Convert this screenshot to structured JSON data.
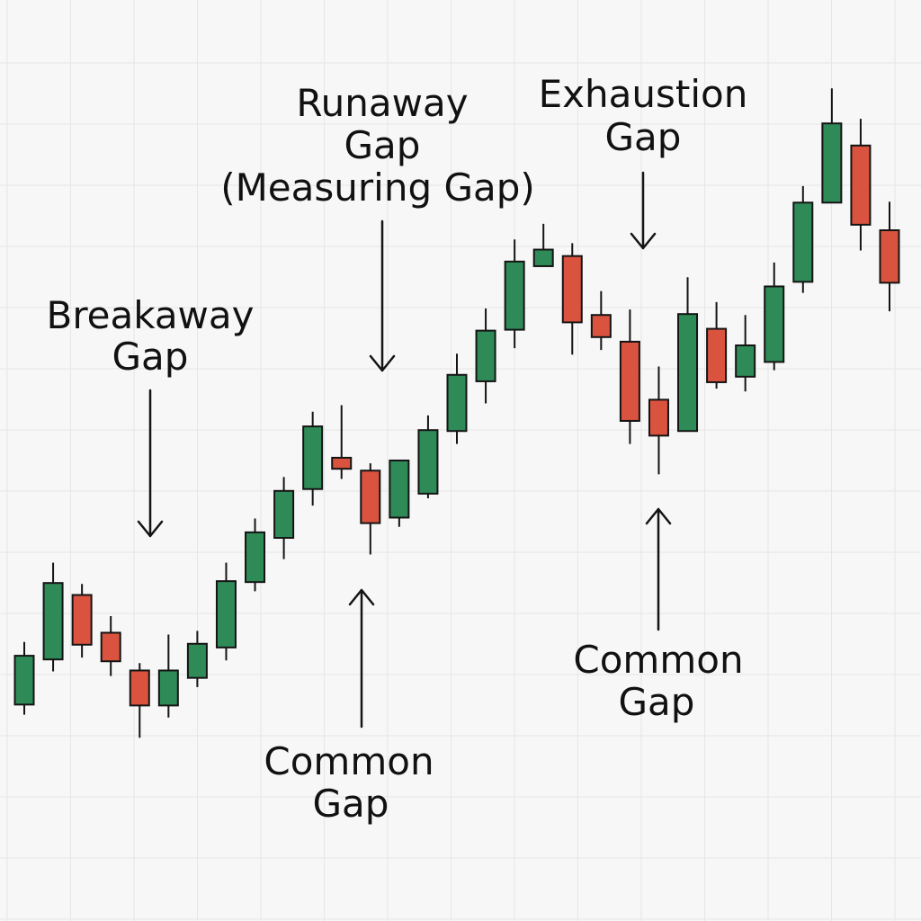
{
  "chart_data": {
    "type": "candlestick",
    "title": "",
    "xlabel": "",
    "ylabel": "",
    "ylim": [
      0,
      1000
    ],
    "grid": true,
    "legend": "none",
    "colors": {
      "up": "#2e8b57",
      "down": "#d9533f",
      "outline": "#141414",
      "grid": "#e6e6e6",
      "background": "#f7f7f7"
    },
    "candles": [
      {
        "open": 235,
        "close": 288,
        "high": 303,
        "low": 224
      },
      {
        "open": 284,
        "close": 367,
        "high": 389,
        "low": 271
      },
      {
        "open": 354,
        "close": 300,
        "high": 366,
        "low": 286
      },
      {
        "open": 313,
        "close": 282,
        "high": 331,
        "low": 266
      },
      {
        "open": 272,
        "close": 234,
        "high": 280,
        "low": 199
      },
      {
        "open": 234,
        "close": 272,
        "high": 311,
        "low": 221
      },
      {
        "open": 264,
        "close": 301,
        "high": 315,
        "low": 254
      },
      {
        "open": 297,
        "close": 369,
        "high": 389,
        "low": 283
      },
      {
        "open": 368,
        "close": 422,
        "high": 437,
        "low": 358
      },
      {
        "open": 416,
        "close": 467,
        "high": 482,
        "low": 393
      },
      {
        "open": 469,
        "close": 537,
        "high": 553,
        "low": 451
      },
      {
        "open": 503,
        "close": 491,
        "high": 560,
        "low": 480
      },
      {
        "open": 489,
        "close": 432,
        "high": 497,
        "low": 398
      },
      {
        "open": 438,
        "close": 500,
        "high": 501,
        "low": 428
      },
      {
        "open": 464,
        "close": 533,
        "high": 549,
        "low": 459
      },
      {
        "open": 532,
        "close": 593,
        "high": 616,
        "low": 518
      },
      {
        "open": 586,
        "close": 641,
        "high": 665,
        "low": 562
      },
      {
        "open": 642,
        "close": 716,
        "high": 740,
        "low": 622
      },
      {
        "open": 711,
        "close": 729,
        "high": 757,
        "low": 711
      },
      {
        "open": 722,
        "close": 650,
        "high": 736,
        "low": 615
      },
      {
        "open": 658,
        "close": 634,
        "high": 684,
        "low": 620
      },
      {
        "open": 629,
        "close": 543,
        "high": 664,
        "low": 518
      },
      {
        "open": 566,
        "close": 527,
        "high": 602,
        "low": 485
      },
      {
        "open": 532,
        "close": 659,
        "high": 699,
        "low": 537
      },
      {
        "open": 643,
        "close": 585,
        "high": 672,
        "low": 578
      },
      {
        "open": 591,
        "close": 625,
        "high": 658,
        "low": 575
      },
      {
        "open": 607,
        "close": 689,
        "high": 715,
        "low": 598
      },
      {
        "open": 694,
        "close": 780,
        "high": 798,
        "low": 682
      },
      {
        "open": 780,
        "close": 866,
        "high": 904,
        "low": 780
      },
      {
        "open": 842,
        "close": 756,
        "high": 871,
        "low": 728
      },
      {
        "open": 750,
        "close": 693,
        "high": 781,
        "low": 662
      }
    ],
    "annotations": [
      {
        "lines": [
          "Breakaway",
          "Gap"
        ],
        "arrow": "down"
      },
      {
        "lines": [
          "Runaway",
          "Gap",
          "(Measuring Gap)"
        ],
        "arrow": "down"
      },
      {
        "lines": [
          "Exhaustion",
          "Gap"
        ],
        "arrow": "down"
      },
      {
        "lines": [
          "Common",
          "Gap"
        ],
        "arrow": "up"
      },
      {
        "lines": [
          "Common",
          "Gap"
        ],
        "arrow": "up"
      }
    ]
  }
}
